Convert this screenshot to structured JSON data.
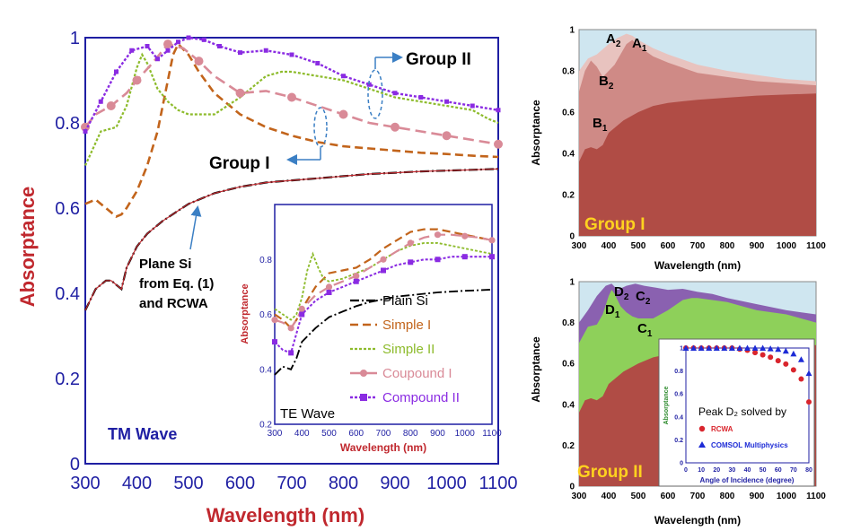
{
  "colors": {
    "axis_blue": "#1f1fa3",
    "title_red": "#c0282e",
    "plain": "#000000",
    "simple1": "#c2641b",
    "simple2": "#8dbb2b",
    "compound1": "#d98a97",
    "compound2": "#8a2be2",
    "arrow": "#3b7fc4",
    "group_label": "#ffd21f",
    "sky": "#cfe6f0",
    "layer1_dark": "#b04c45",
    "layer1_mid": "#cf8a86",
    "layer1_light": "#e8c3bf",
    "layer2_green": "#8ed05a",
    "layer2_purple": "#8a61b0",
    "rcwa": "#d9252d",
    "comsol": "#1d2bd6"
  },
  "chart_data": [
    {
      "id": "main",
      "type": "line",
      "title": "",
      "xlabel": "Wavelength (nm)",
      "ylabel": "Absorptance",
      "xlim": [
        300,
        1100
      ],
      "ylim": [
        0,
        1
      ],
      "xticks": [
        "300",
        "400",
        "500",
        "600",
        "700",
        "800",
        "900",
        "1000",
        "1100"
      ],
      "yticks": [
        "0",
        "0.2",
        "0.4",
        "0.6",
        "0.8",
        "1"
      ],
      "annotations": {
        "wave": "TM Wave",
        "plane_line1": "Plane Si",
        "plane_line2": "from Eq. (1)",
        "plane_line3": "and RCWA",
        "group1": "Group I",
        "group2": "Group II"
      },
      "series": [
        {
          "key": "plain",
          "x": [
            300,
            320,
            340,
            350,
            360,
            370,
            380,
            400,
            420,
            450,
            500,
            550,
            600,
            650,
            700,
            750,
            800,
            850,
            900,
            950,
            1000,
            1050,
            1100
          ],
          "y": [
            0.36,
            0.41,
            0.43,
            0.43,
            0.42,
            0.41,
            0.46,
            0.51,
            0.54,
            0.57,
            0.61,
            0.635,
            0.65,
            0.66,
            0.665,
            0.67,
            0.675,
            0.68,
            0.683,
            0.686,
            0.688,
            0.69,
            0.692
          ]
        },
        {
          "key": "simple1",
          "x": [
            300,
            320,
            340,
            360,
            370,
            380,
            400,
            420,
            440,
            460,
            470,
            480,
            500,
            520,
            550,
            600,
            650,
            700,
            750,
            800,
            850,
            900,
            950,
            1000,
            1050,
            1100
          ],
          "y": [
            0.61,
            0.62,
            0.6,
            0.58,
            0.585,
            0.6,
            0.64,
            0.7,
            0.78,
            0.9,
            0.96,
            0.985,
            0.96,
            0.92,
            0.87,
            0.82,
            0.79,
            0.77,
            0.755,
            0.745,
            0.74,
            0.735,
            0.73,
            0.727,
            0.723,
            0.72
          ]
        },
        {
          "key": "simple2",
          "x": [
            300,
            330,
            360,
            380,
            400,
            410,
            420,
            440,
            460,
            480,
            500,
            550,
            600,
            650,
            680,
            700,
            750,
            800,
            850,
            900,
            950,
            1000,
            1050,
            1080,
            1100
          ],
          "y": [
            0.7,
            0.78,
            0.79,
            0.84,
            0.93,
            0.96,
            0.94,
            0.88,
            0.85,
            0.83,
            0.82,
            0.82,
            0.86,
            0.91,
            0.92,
            0.92,
            0.91,
            0.9,
            0.88,
            0.86,
            0.85,
            0.84,
            0.83,
            0.81,
            0.8
          ]
        },
        {
          "key": "compound1",
          "x": [
            300,
            320,
            350,
            380,
            400,
            430,
            460,
            490,
            520,
            550,
            600,
            650,
            700,
            750,
            800,
            850,
            900,
            950,
            1000,
            1050,
            1100
          ],
          "y": [
            0.79,
            0.82,
            0.84,
            0.87,
            0.9,
            0.94,
            0.985,
            0.975,
            0.945,
            0.91,
            0.87,
            0.875,
            0.86,
            0.84,
            0.82,
            0.8,
            0.79,
            0.78,
            0.77,
            0.76,
            0.75
          ]
        },
        {
          "key": "compound2",
          "x": [
            300,
            330,
            360,
            390,
            420,
            440,
            460,
            480,
            500,
            530,
            560,
            600,
            650,
            700,
            750,
            800,
            850,
            900,
            950,
            1000,
            1050,
            1100
          ],
          "y": [
            0.78,
            0.85,
            0.92,
            0.97,
            0.98,
            0.95,
            0.97,
            0.99,
            1.0,
            0.995,
            0.98,
            0.965,
            0.97,
            0.96,
            0.94,
            0.91,
            0.89,
            0.87,
            0.86,
            0.85,
            0.84,
            0.83
          ]
        }
      ]
    },
    {
      "id": "inset_te",
      "type": "line",
      "title": "",
      "xlabel": "Wavelength (nm)",
      "ylabel": "Absorptance",
      "xlim": [
        300,
        1100
      ],
      "ylim": [
        0.2,
        1
      ],
      "xticks": [
        "300",
        "400",
        "500",
        "600",
        "700",
        "800",
        "900",
        "1000",
        "1100"
      ],
      "yticks": [
        "0.2",
        "0.4",
        "0.6",
        "0.8"
      ],
      "annotations": {
        "wave": "TE Wave"
      },
      "legend": [
        "Plain Si",
        "Simple I",
        "Simple II",
        "Coupound I",
        "Compound II"
      ],
      "series": [
        {
          "key": "plain",
          "x": [
            300,
            330,
            360,
            380,
            400,
            450,
            500,
            550,
            600,
            650,
            700,
            750,
            800,
            850,
            900,
            950,
            1000,
            1050,
            1100
          ],
          "y": [
            0.38,
            0.41,
            0.4,
            0.44,
            0.5,
            0.55,
            0.59,
            0.61,
            0.63,
            0.645,
            0.655,
            0.665,
            0.67,
            0.675,
            0.68,
            0.683,
            0.686,
            0.688,
            0.69
          ]
        },
        {
          "key": "simple1",
          "x": [
            300,
            330,
            360,
            380,
            400,
            450,
            500,
            550,
            600,
            650,
            700,
            750,
            800,
            850,
            900,
            950,
            1000,
            1050,
            1100
          ],
          "y": [
            0.6,
            0.58,
            0.55,
            0.58,
            0.62,
            0.7,
            0.75,
            0.76,
            0.77,
            0.8,
            0.84,
            0.87,
            0.9,
            0.91,
            0.91,
            0.9,
            0.89,
            0.88,
            0.87
          ]
        },
        {
          "key": "simple2",
          "x": [
            300,
            330,
            360,
            380,
            400,
            420,
            440,
            460,
            480,
            500,
            550,
            600,
            650,
            700,
            750,
            800,
            850,
            900,
            950,
            1000,
            1050,
            1100
          ],
          "y": [
            0.62,
            0.6,
            0.58,
            0.6,
            0.66,
            0.76,
            0.82,
            0.77,
            0.73,
            0.72,
            0.73,
            0.75,
            0.77,
            0.8,
            0.83,
            0.85,
            0.86,
            0.86,
            0.85,
            0.84,
            0.83,
            0.82
          ]
        },
        {
          "key": "compound1",
          "x": [
            300,
            330,
            360,
            380,
            400,
            450,
            500,
            550,
            600,
            650,
            700,
            750,
            800,
            850,
            900,
            950,
            1000,
            1050,
            1100
          ],
          "y": [
            0.58,
            0.57,
            0.55,
            0.58,
            0.62,
            0.67,
            0.7,
            0.72,
            0.74,
            0.77,
            0.8,
            0.83,
            0.86,
            0.88,
            0.89,
            0.89,
            0.885,
            0.88,
            0.87
          ]
        },
        {
          "key": "compound2",
          "x": [
            300,
            330,
            360,
            380,
            400,
            450,
            500,
            550,
            600,
            650,
            700,
            750,
            800,
            850,
            900,
            950,
            1000,
            1050,
            1100
          ],
          "y": [
            0.5,
            0.47,
            0.46,
            0.53,
            0.6,
            0.65,
            0.68,
            0.7,
            0.72,
            0.74,
            0.76,
            0.78,
            0.79,
            0.8,
            0.8,
            0.81,
            0.81,
            0.81,
            0.81
          ]
        }
      ]
    },
    {
      "id": "group1",
      "type": "area",
      "title": "",
      "xlabel": "Wavelength (nm)",
      "ylabel": "Absorptance",
      "xlim": [
        300,
        1100
      ],
      "ylim": [
        0,
        1
      ],
      "xticks": [
        "300",
        "400",
        "500",
        "600",
        "700",
        "800",
        "900",
        "1000",
        "1100"
      ],
      "yticks": [
        "0",
        "0.2",
        "0.4",
        "0.6",
        "0.8",
        "1"
      ],
      "annotations": {
        "group": "Group I",
        "A2": "A",
        "A2_sub": "2",
        "A1": "A",
        "A1_sub": "1",
        "B2": "B",
        "B2_sub": "2",
        "B1": "B",
        "B1_sub": "1"
      },
      "layers": [
        {
          "key": "light",
          "x": [
            300,
            330,
            360,
            400,
            430,
            460,
            480,
            500,
            550,
            600,
            700,
            800,
            900,
            1000,
            1100
          ],
          "y": [
            0.8,
            0.86,
            0.88,
            0.93,
            0.96,
            0.98,
            0.97,
            0.95,
            0.91,
            0.88,
            0.83,
            0.8,
            0.78,
            0.76,
            0.75
          ]
        },
        {
          "key": "mid",
          "x": [
            300,
            320,
            340,
            360,
            380,
            400,
            420,
            440,
            460,
            480,
            500,
            550,
            600,
            700,
            800,
            900,
            1000,
            1100
          ],
          "y": [
            0.7,
            0.8,
            0.85,
            0.82,
            0.77,
            0.8,
            0.83,
            0.88,
            0.93,
            0.95,
            0.92,
            0.87,
            0.84,
            0.79,
            0.77,
            0.75,
            0.74,
            0.73
          ]
        },
        {
          "key": "dark",
          "x": [
            300,
            320,
            340,
            360,
            380,
            400,
            450,
            500,
            550,
            600,
            700,
            800,
            900,
            1000,
            1100
          ],
          "y": [
            0.36,
            0.42,
            0.43,
            0.42,
            0.44,
            0.5,
            0.56,
            0.6,
            0.63,
            0.645,
            0.66,
            0.67,
            0.68,
            0.685,
            0.69
          ]
        }
      ]
    },
    {
      "id": "group2",
      "type": "area",
      "title": "",
      "xlabel": "Wavelength (nm)",
      "ylabel": "Absorptance",
      "xlim": [
        300,
        1100
      ],
      "ylim": [
        0,
        1
      ],
      "xticks": [
        "300",
        "400",
        "500",
        "600",
        "700",
        "800",
        "900",
        "1000",
        "1100"
      ],
      "yticks": [
        "0",
        "0.2",
        "0.4",
        "0.6",
        "0.8",
        "1"
      ],
      "annotations": {
        "group": "Group II",
        "D2": "D",
        "D2_sub": "2",
        "C2": "C",
        "C2_sub": "2",
        "D1": "D",
        "D1_sub": "1",
        "C1": "C",
        "C1_sub": "1"
      },
      "layers": [
        {
          "key": "purple",
          "x": [
            300,
            330,
            360,
            390,
            410,
            430,
            460,
            490,
            520,
            560,
            600,
            650,
            700,
            750,
            800,
            900,
            1000,
            1100
          ],
          "y": [
            0.8,
            0.86,
            0.93,
            0.98,
            0.99,
            0.96,
            0.98,
            0.99,
            0.98,
            0.97,
            0.96,
            0.965,
            0.95,
            0.94,
            0.92,
            0.89,
            0.86,
            0.84
          ]
        },
        {
          "key": "green",
          "x": [
            300,
            330,
            360,
            380,
            400,
            410,
            420,
            440,
            460,
            480,
            500,
            550,
            600,
            650,
            680,
            700,
            750,
            800,
            850,
            900,
            1000,
            1100
          ],
          "y": [
            0.7,
            0.78,
            0.79,
            0.84,
            0.93,
            0.96,
            0.94,
            0.88,
            0.85,
            0.83,
            0.82,
            0.82,
            0.86,
            0.91,
            0.92,
            0.92,
            0.91,
            0.9,
            0.88,
            0.86,
            0.84,
            0.8
          ]
        },
        {
          "key": "dark",
          "x": [
            300,
            320,
            340,
            360,
            380,
            400,
            450,
            500,
            550,
            600,
            700,
            800,
            900,
            1000,
            1100
          ],
          "y": [
            0.36,
            0.42,
            0.43,
            0.42,
            0.44,
            0.5,
            0.56,
            0.6,
            0.63,
            0.645,
            0.66,
            0.67,
            0.68,
            0.685,
            0.69
          ]
        }
      ]
    },
    {
      "id": "inset_angle",
      "type": "scatter",
      "title": "Peak D₂ solved by",
      "xlabel": "Angle of Incidence (degree)",
      "ylabel": "Absorptance",
      "xlim": [
        0,
        80
      ],
      "ylim": [
        0,
        1
      ],
      "xticks": [
        "0",
        "10",
        "20",
        "30",
        "40",
        "50",
        "60",
        "70",
        "80"
      ],
      "yticks": [
        "0",
        "0.2",
        "0.4",
        "0.6",
        "0.8",
        "1"
      ],
      "legend": [
        "RCWA",
        "COMSOL Multiphysics"
      ],
      "series": [
        {
          "key": "rcwa",
          "x": [
            0,
            5,
            10,
            15,
            20,
            25,
            30,
            35,
            40,
            45,
            50,
            55,
            60,
            65,
            70,
            75,
            80
          ],
          "y": [
            1,
            1,
            1,
            1,
            1,
            1,
            1,
            0.99,
            0.98,
            0.96,
            0.94,
            0.92,
            0.89,
            0.86,
            0.81,
            0.73,
            0.53
          ]
        },
        {
          "key": "comsol",
          "x": [
            0,
            5,
            10,
            15,
            20,
            25,
            30,
            35,
            40,
            45,
            50,
            55,
            60,
            65,
            70,
            75,
            80
          ],
          "y": [
            1,
            1,
            1,
            1,
            1,
            1,
            1,
            1,
            1,
            1,
            1,
            0.995,
            0.99,
            0.975,
            0.95,
            0.9,
            0.78
          ]
        }
      ]
    }
  ]
}
